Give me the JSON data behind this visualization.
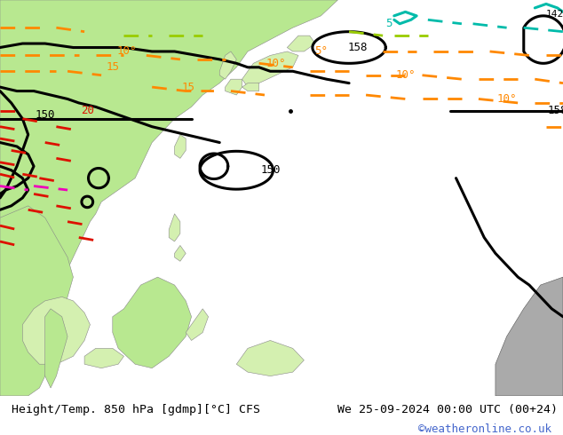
{
  "title_left": "Height/Temp. 850 hPa [gdmp][°C] CFS",
  "title_right": "We 25-09-2024 00:00 UTC (00+24)",
  "copyright": "©weatheronline.co.uk",
  "ocean_color": "#d0d0d0",
  "land_green": "#b8e890",
  "land_light_green": "#d4f0b0",
  "bottom_bar_color": "#ffffff",
  "copyright_color": "#4466cc",
  "figure_width": 6.34,
  "figure_height": 4.9
}
